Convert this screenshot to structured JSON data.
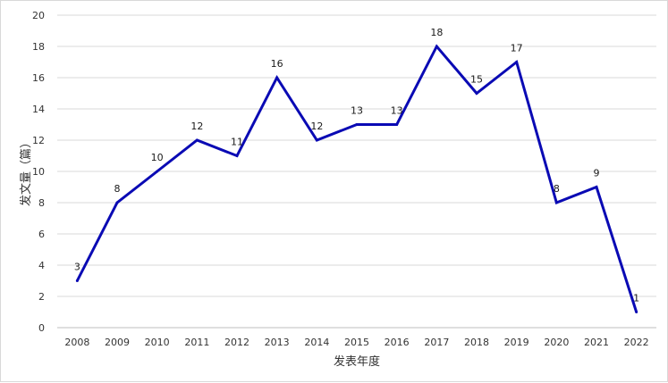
{
  "chart_data": {
    "type": "line",
    "title": "",
    "xlabel": "发表年度",
    "ylabel": "发文量（篇）",
    "x": [
      "2008",
      "2009",
      "2010",
      "2011",
      "2012",
      "2013",
      "2014",
      "2015",
      "2016",
      "2017",
      "2018",
      "2019",
      "2020",
      "2021",
      "2022"
    ],
    "series": [
      {
        "values": [
          3,
          8,
          10,
          12,
          11,
          16,
          12,
          13,
          13,
          18,
          15,
          17,
          8,
          9,
          1
        ],
        "color": "#0a0ab4",
        "data_labels": true
      }
    ],
    "ylim": [
      0,
      20
    ],
    "yticks": [
      0,
      2,
      4,
      6,
      8,
      10,
      12,
      14,
      16,
      18,
      20
    ],
    "grid": "horizontal",
    "legend": "none"
  }
}
